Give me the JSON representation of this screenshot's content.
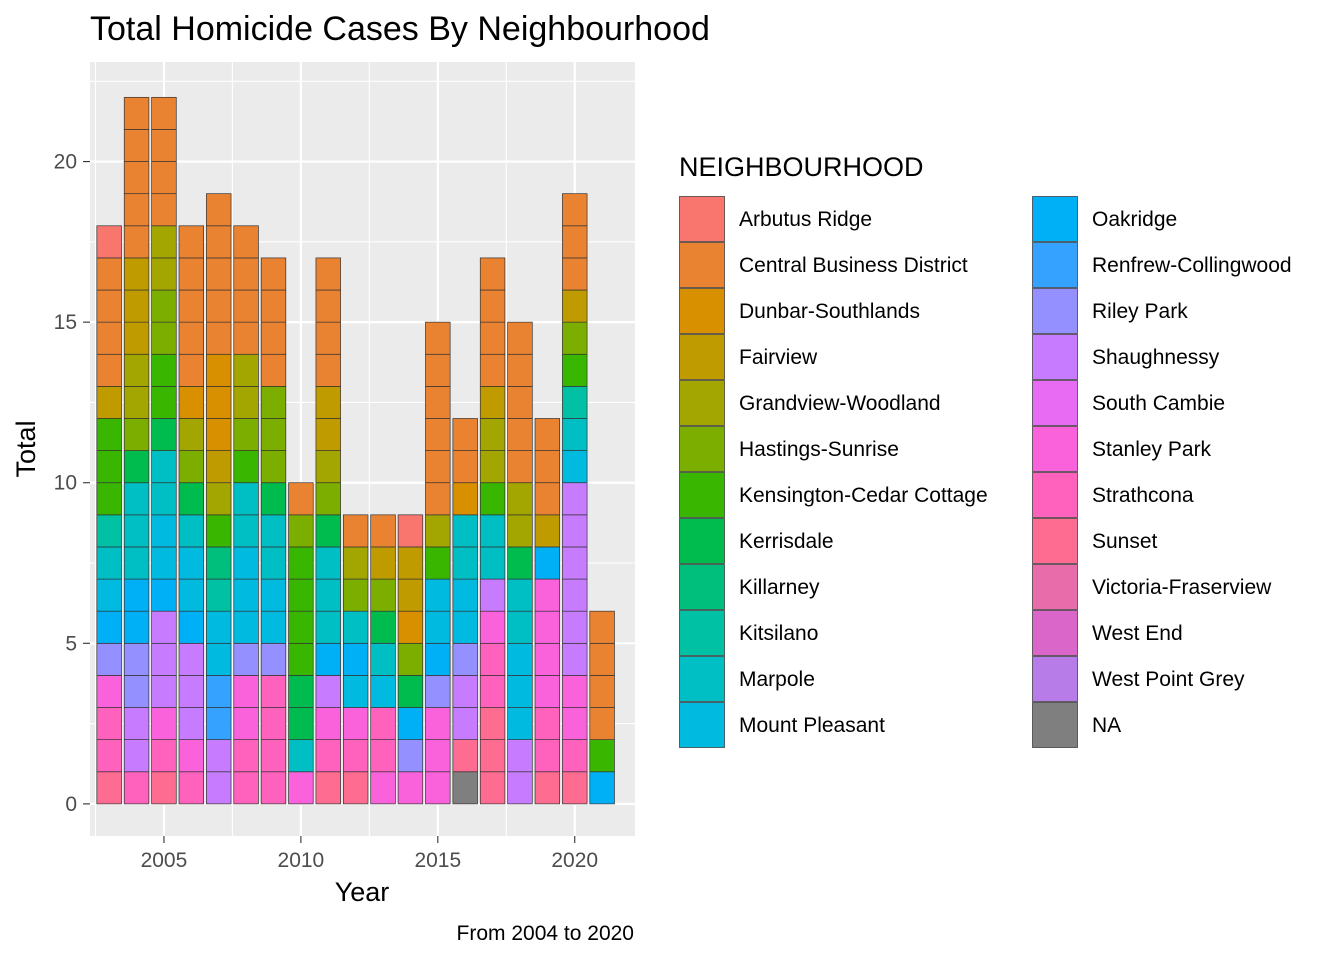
{
  "chart_data": {
    "type": "bar",
    "stacked": true,
    "title": "Total Homicide Cases By Neighbourhood",
    "xlabel": "Year",
    "ylabel": "Total",
    "caption": "From 2004 to 2020",
    "xlim": [
      2002.3,
      2022.2
    ],
    "ylim": [
      -1.0,
      23.1
    ],
    "x_ticks": [
      2005,
      2010,
      2015,
      2020
    ],
    "y_ticks": [
      0,
      5,
      10,
      15,
      20
    ],
    "grid": true,
    "legend": {
      "title": "NEIGHBOURHOOD",
      "placement": "right",
      "columns": 2,
      "entries": [
        {
          "name": "Arbutus Ridge",
          "color": "#F8766D"
        },
        {
          "name": "Central Business District",
          "color": "#EA8331"
        },
        {
          "name": "Dunbar-Southlands",
          "color": "#D89000"
        },
        {
          "name": "Fairview",
          "color": "#C09B00"
        },
        {
          "name": "Grandview-Woodland",
          "color": "#A3A500"
        },
        {
          "name": "Hastings-Sunrise",
          "color": "#7CAE00"
        },
        {
          "name": "Kensington-Cedar Cottage",
          "color": "#39B600"
        },
        {
          "name": "Kerrisdale",
          "color": "#00BB4E"
        },
        {
          "name": "Killarney",
          "color": "#00BF7D"
        },
        {
          "name": "Kitsilano",
          "color": "#00C1A3"
        },
        {
          "name": "Marpole",
          "color": "#00BFC4"
        },
        {
          "name": "Mount Pleasant",
          "color": "#00BAE0"
        },
        {
          "name": "Oakridge",
          "color": "#00B0F6"
        },
        {
          "name": "Renfrew-Collingwood",
          "color": "#35A2FF"
        },
        {
          "name": "Riley Park",
          "color": "#9590FF"
        },
        {
          "name": "Shaughnessy",
          "color": "#C77CFF"
        },
        {
          "name": "South Cambie",
          "color": "#E76BF3"
        },
        {
          "name": "Stanley Park",
          "color": "#FA62DB"
        },
        {
          "name": "Strathcona",
          "color": "#FF62BC"
        },
        {
          "name": "Sunset",
          "color": "#FF6C91"
        },
        {
          "name": "Victoria-Fraserview",
          "color": "#E86BAA"
        },
        {
          "name": "West End",
          "color": "#D966C8"
        },
        {
          "name": "West Point Grey",
          "color": "#B87CE8"
        },
        {
          "name": "NA",
          "color": "#7F7F7F"
        }
      ]
    },
    "bars": [
      {
        "x": 2003,
        "segments": [
          [
            "Sunset",
            1
          ],
          [
            "Strathcona",
            2
          ],
          [
            "Stanley Park",
            1
          ],
          [
            "Riley Park",
            1
          ],
          [
            "Oakridge",
            1
          ],
          [
            "Mount Pleasant",
            1
          ],
          [
            "Marpole",
            1
          ],
          [
            "Kitsilano",
            1
          ],
          [
            "Kensington-Cedar Cottage",
            3
          ],
          [
            "Fairview",
            1
          ],
          [
            "Central Business District",
            4
          ],
          [
            "Arbutus Ridge",
            1
          ]
        ]
      },
      {
        "x": 2004,
        "segments": [
          [
            "Strathcona",
            1
          ],
          [
            "Shaughnessy",
            2
          ],
          [
            "Riley Park",
            2
          ],
          [
            "Oakridge",
            2
          ],
          [
            "Marpole",
            3
          ],
          [
            "Kerrisdale",
            1
          ],
          [
            "Hastings-Sunrise",
            1
          ],
          [
            "Grandview-Woodland",
            2
          ],
          [
            "Fairview",
            3
          ],
          [
            "Central Business District",
            5
          ]
        ]
      },
      {
        "x": 2005,
        "segments": [
          [
            "Sunset",
            1
          ],
          [
            "Strathcona",
            1
          ],
          [
            "Stanley Park",
            1
          ],
          [
            "Shaughnessy",
            3
          ],
          [
            "Oakridge",
            1
          ],
          [
            "Mount Pleasant",
            2
          ],
          [
            "Marpole",
            2
          ],
          [
            "Kerrisdale",
            1
          ],
          [
            "Kensington-Cedar Cottage",
            2
          ],
          [
            "Hastings-Sunrise",
            2
          ],
          [
            "Grandview-Woodland",
            2
          ],
          [
            "Central Business District",
            4
          ]
        ]
      },
      {
        "x": 2006,
        "segments": [
          [
            "Strathcona",
            1
          ],
          [
            "Stanley Park",
            1
          ],
          [
            "Shaughnessy",
            3
          ],
          [
            "Oakridge",
            1
          ],
          [
            "Mount Pleasant",
            2
          ],
          [
            "Marpole",
            1
          ],
          [
            "Kerrisdale",
            1
          ],
          [
            "Hastings-Sunrise",
            1
          ],
          [
            "Grandview-Woodland",
            1
          ],
          [
            "Dunbar-Southlands",
            1
          ],
          [
            "Central Business District",
            5
          ]
        ]
      },
      {
        "x": 2007,
        "segments": [
          [
            "Shaughnessy",
            2
          ],
          [
            "Renfrew-Collingwood",
            2
          ],
          [
            "Mount Pleasant",
            2
          ],
          [
            "Kitsilano",
            1
          ],
          [
            "Killarney",
            1
          ],
          [
            "Kensington-Cedar Cottage",
            1
          ],
          [
            "Grandview-Woodland",
            1
          ],
          [
            "Fairview",
            1
          ],
          [
            "Dunbar-Southlands",
            3
          ],
          [
            "Central Business District",
            5
          ]
        ]
      },
      {
        "x": 2008,
        "segments": [
          [
            "Strathcona",
            2
          ],
          [
            "Stanley Park",
            2
          ],
          [
            "Riley Park",
            1
          ],
          [
            "Mount Pleasant",
            3
          ],
          [
            "Marpole",
            2
          ],
          [
            "Kensington-Cedar Cottage",
            1
          ],
          [
            "Hastings-Sunrise",
            1
          ],
          [
            "Grandview-Woodland",
            2
          ],
          [
            "Central Business District",
            4
          ]
        ]
      },
      {
        "x": 2009,
        "segments": [
          [
            "Strathcona",
            4
          ],
          [
            "Riley Park",
            1
          ],
          [
            "Mount Pleasant",
            2
          ],
          [
            "Marpole",
            2
          ],
          [
            "Kerrisdale",
            1
          ],
          [
            "Hastings-Sunrise",
            3
          ],
          [
            "Central Business District",
            4
          ]
        ]
      },
      {
        "x": 2010,
        "segments": [
          [
            "Stanley Park",
            1
          ],
          [
            "Marpole",
            1
          ],
          [
            "Kerrisdale",
            2
          ],
          [
            "Kensington-Cedar Cottage",
            4
          ],
          [
            "Hastings-Sunrise",
            1
          ],
          [
            "Central Business District",
            1
          ]
        ]
      },
      {
        "x": 2011,
        "segments": [
          [
            "Sunset",
            1
          ],
          [
            "Strathcona",
            1
          ],
          [
            "Stanley Park",
            1
          ],
          [
            "Shaughnessy",
            1
          ],
          [
            "Oakridge",
            1
          ],
          [
            "Marpole",
            3
          ],
          [
            "Kerrisdale",
            1
          ],
          [
            "Hastings-Sunrise",
            1
          ],
          [
            "Grandview-Woodland",
            1
          ],
          [
            "Fairview",
            2
          ],
          [
            "Central Business District",
            4
          ]
        ]
      },
      {
        "x": 2012,
        "segments": [
          [
            "Sunset",
            1
          ],
          [
            "Strathcona",
            1
          ],
          [
            "Stanley Park",
            1
          ],
          [
            "Mount Pleasant",
            1
          ],
          [
            "Oakridge",
            1
          ],
          [
            "Marpole",
            1
          ],
          [
            "Hastings-Sunrise",
            1
          ],
          [
            "Grandview-Woodland",
            1
          ],
          [
            "Central Business District",
            1
          ]
        ]
      },
      {
        "x": 2013,
        "segments": [
          [
            "Stanley Park",
            1
          ],
          [
            "Strathcona",
            2
          ],
          [
            "Mount Pleasant",
            1
          ],
          [
            "Marpole",
            1
          ],
          [
            "Kerrisdale",
            1
          ],
          [
            "Hastings-Sunrise",
            1
          ],
          [
            "Fairview",
            1
          ],
          [
            "Central Business District",
            1
          ]
        ]
      },
      {
        "x": 2014,
        "segments": [
          [
            "Stanley Park",
            1
          ],
          [
            "Riley Park",
            1
          ],
          [
            "Oakridge",
            1
          ],
          [
            "Kerrisdale",
            1
          ],
          [
            "Hastings-Sunrise",
            1
          ],
          [
            "Dunbar-Southlands",
            1
          ],
          [
            "Fairview",
            2
          ],
          [
            "Arbutus Ridge",
            1
          ]
        ]
      },
      {
        "x": 2015,
        "segments": [
          [
            "Stanley Park",
            3
          ],
          [
            "Riley Park",
            1
          ],
          [
            "Oakridge",
            1
          ],
          [
            "Mount Pleasant",
            2
          ],
          [
            "Kensington-Cedar Cottage",
            1
          ],
          [
            "Grandview-Woodland",
            1
          ],
          [
            "Central Business District",
            6
          ]
        ]
      },
      {
        "x": 2016,
        "segments": [
          [
            "NA",
            1
          ],
          [
            "Sunset",
            1
          ],
          [
            "Shaughnessy",
            2
          ],
          [
            "Riley Park",
            1
          ],
          [
            "Mount Pleasant",
            2
          ],
          [
            "Marpole",
            2
          ],
          [
            "Kerrisdale",
            0
          ],
          [
            "Hastings-Sunrise",
            0
          ],
          [
            "Grandview-Woodland",
            0
          ],
          [
            "Fairview",
            0
          ],
          [
            "Dunbar-Southlands",
            1
          ],
          [
            "Central Business District",
            2
          ]
        ]
      },
      {
        "x": 2017,
        "segments": [
          [
            "Sunset",
            3
          ],
          [
            "Strathcona",
            2
          ],
          [
            "Stanley Park",
            1
          ],
          [
            "Shaughnessy",
            1
          ],
          [
            "Marpole",
            2
          ],
          [
            "Kensington-Cedar Cottage",
            1
          ],
          [
            "Grandview-Woodland",
            2
          ],
          [
            "Fairview",
            1
          ],
          [
            "Central Business District",
            4
          ]
        ]
      },
      {
        "x": 2018,
        "segments": [
          [
            "Shaughnessy",
            2
          ],
          [
            "Mount Pleasant",
            3
          ],
          [
            "Marpole",
            2
          ],
          [
            "Kerrisdale",
            1
          ],
          [
            "Grandview-Woodland",
            2
          ],
          [
            "Central Business District",
            5
          ]
        ]
      },
      {
        "x": 2019,
        "segments": [
          [
            "Sunset",
            1
          ],
          [
            "Strathcona",
            2
          ],
          [
            "Stanley Park",
            4
          ],
          [
            "Oakridge",
            1
          ],
          [
            "Fairview",
            1
          ],
          [
            "Central Business District",
            3
          ]
        ]
      },
      {
        "x": 2020,
        "segments": [
          [
            "Sunset",
            1
          ],
          [
            "Strathcona",
            1
          ],
          [
            "Stanley Park",
            2
          ],
          [
            "Shaughnessy",
            6
          ],
          [
            "Mount Pleasant",
            1
          ],
          [
            "Marpole",
            1
          ],
          [
            "Kitsilano",
            1
          ],
          [
            "Kensington-Cedar Cottage",
            1
          ],
          [
            "Hastings-Sunrise",
            1
          ],
          [
            "Fairview",
            1
          ],
          [
            "Central Business District",
            3
          ]
        ]
      },
      {
        "x": 2021,
        "segments": [
          [
            "Oakridge",
            1
          ],
          [
            "Kensington-Cedar Cottage",
            1
          ],
          [
            "Central Business District",
            4
          ]
        ]
      }
    ]
  }
}
